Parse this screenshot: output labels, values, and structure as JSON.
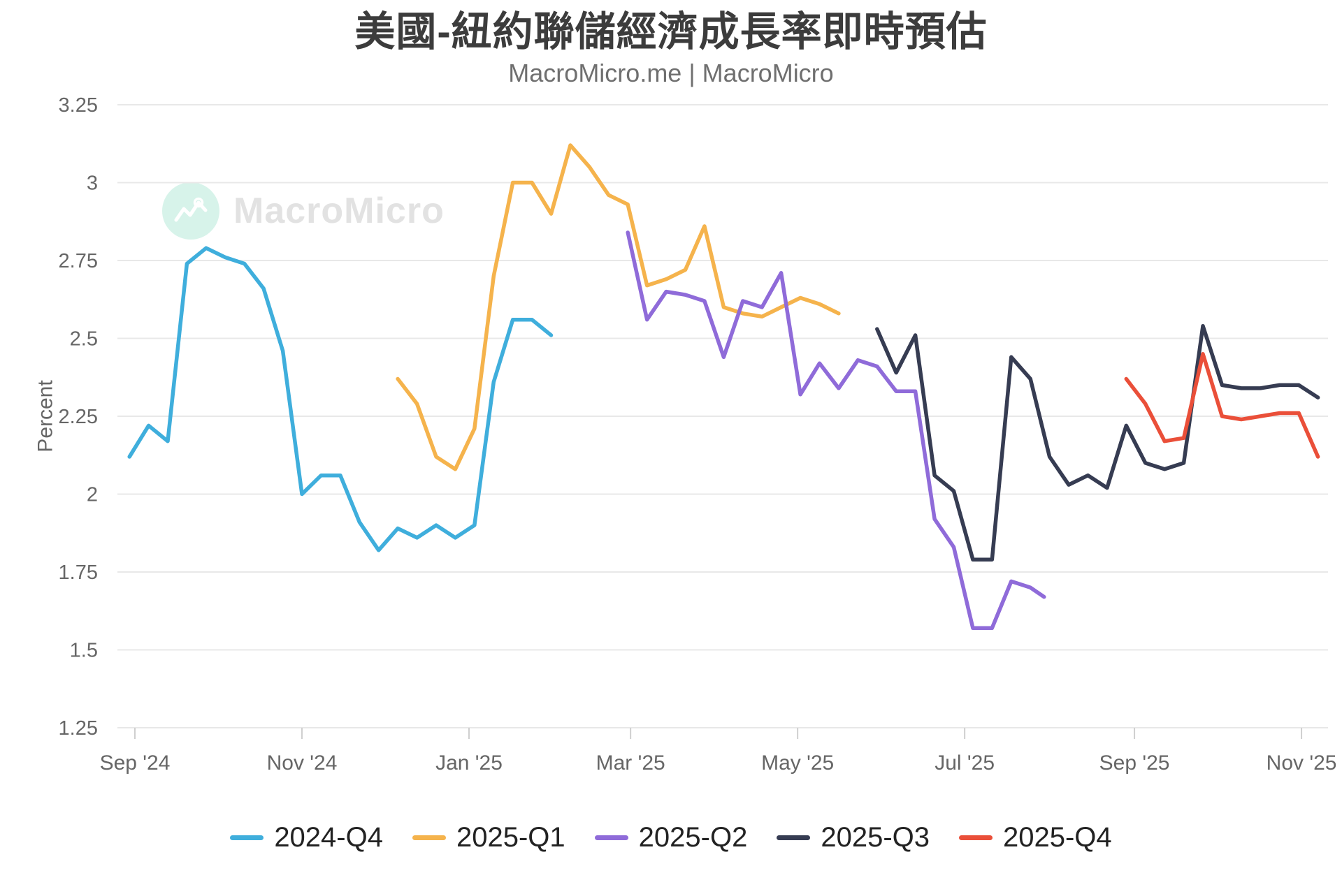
{
  "title": "美國-紐約聯儲經濟成長率即時預估",
  "subtitle": "MacroMicro.me | MacroMicro",
  "watermark": {
    "label": "MacroMicro"
  },
  "chart_data": {
    "type": "line",
    "title": "美國-紐約聯儲經濟成長率即時預估",
    "subtitle": "MacroMicro.me | MacroMicro",
    "ylabel": "Percent",
    "ylim": [
      1.25,
      3.25
    ],
    "y_ticks": [
      1.25,
      1.5,
      1.75,
      2,
      2.25,
      2.5,
      2.75,
      3,
      3.25
    ],
    "y_tick_labels": [
      "1.25",
      "1.5",
      "1.75",
      "2",
      "2.25",
      "2.5",
      "2.75",
      "3",
      "3.25"
    ],
    "x_ticks": [
      {
        "date": "2024-09-01",
        "label": "Sep '24"
      },
      {
        "date": "2024-11-01",
        "label": "Nov '24"
      },
      {
        "date": "2025-01-01",
        "label": "Jan '25"
      },
      {
        "date": "2025-03-01",
        "label": "Mar '25"
      },
      {
        "date": "2025-05-01",
        "label": "May '25"
      },
      {
        "date": "2025-07-01",
        "label": "Jul '25"
      },
      {
        "date": "2025-09-01",
        "label": "Sep '25"
      },
      {
        "date": "2025-11-01",
        "label": "Nov '25"
      }
    ],
    "grid": "horizontal",
    "legend_position": "bottom",
    "series": [
      {
        "name": "2024-Q4",
        "color": "#3FAEDC",
        "points": [
          [
            "2024-08-30",
            2.12
          ],
          [
            "2024-09-06",
            2.22
          ],
          [
            "2024-09-13",
            2.17
          ],
          [
            "2024-09-20",
            2.74
          ],
          [
            "2024-09-27",
            2.79
          ],
          [
            "2024-10-04",
            2.76
          ],
          [
            "2024-10-11",
            2.74
          ],
          [
            "2024-10-18",
            2.66
          ],
          [
            "2024-10-25",
            2.46
          ],
          [
            "2024-11-01",
            2.0
          ],
          [
            "2024-11-08",
            2.06
          ],
          [
            "2024-11-15",
            2.06
          ],
          [
            "2024-11-22",
            1.91
          ],
          [
            "2024-11-29",
            1.82
          ],
          [
            "2024-12-06",
            1.89
          ],
          [
            "2024-12-13",
            1.86
          ],
          [
            "2024-12-20",
            1.9
          ],
          [
            "2024-12-27",
            1.86
          ],
          [
            "2025-01-03",
            1.9
          ],
          [
            "2025-01-10",
            2.36
          ],
          [
            "2025-01-17",
            2.56
          ],
          [
            "2025-01-24",
            2.56
          ],
          [
            "2025-01-31",
            2.51
          ]
        ]
      },
      {
        "name": "2025-Q1",
        "color": "#F5B34C",
        "points": [
          [
            "2024-12-06",
            2.37
          ],
          [
            "2024-12-13",
            2.29
          ],
          [
            "2024-12-20",
            2.12
          ],
          [
            "2024-12-27",
            2.08
          ],
          [
            "2025-01-03",
            2.21
          ],
          [
            "2025-01-10",
            2.7
          ],
          [
            "2025-01-17",
            3.0
          ],
          [
            "2025-01-24",
            3.0
          ],
          [
            "2025-01-31",
            2.9
          ],
          [
            "2025-02-07",
            3.12
          ],
          [
            "2025-02-14",
            3.05
          ],
          [
            "2025-02-21",
            2.96
          ],
          [
            "2025-02-28",
            2.93
          ],
          [
            "2025-03-07",
            2.67
          ],
          [
            "2025-03-14",
            2.69
          ],
          [
            "2025-03-21",
            2.72
          ],
          [
            "2025-03-28",
            2.86
          ],
          [
            "2025-04-04",
            2.6
          ],
          [
            "2025-04-11",
            2.58
          ],
          [
            "2025-04-18",
            2.57
          ],
          [
            "2025-04-25",
            2.6
          ],
          [
            "2025-05-02",
            2.63
          ],
          [
            "2025-05-09",
            2.61
          ],
          [
            "2025-05-16",
            2.58
          ]
        ]
      },
      {
        "name": "2025-Q2",
        "color": "#8F6BD9",
        "points": [
          [
            "2025-02-28",
            2.84
          ],
          [
            "2025-03-07",
            2.56
          ],
          [
            "2025-03-14",
            2.65
          ],
          [
            "2025-03-21",
            2.64
          ],
          [
            "2025-03-28",
            2.62
          ],
          [
            "2025-04-04",
            2.44
          ],
          [
            "2025-04-11",
            2.62
          ],
          [
            "2025-04-18",
            2.6
          ],
          [
            "2025-04-25",
            2.71
          ],
          [
            "2025-05-02",
            2.32
          ],
          [
            "2025-05-09",
            2.42
          ],
          [
            "2025-05-16",
            2.34
          ],
          [
            "2025-05-23",
            2.43
          ],
          [
            "2025-05-30",
            2.41
          ],
          [
            "2025-06-06",
            2.33
          ],
          [
            "2025-06-13",
            2.33
          ],
          [
            "2025-06-20",
            1.92
          ],
          [
            "2025-06-27",
            1.83
          ],
          [
            "2025-07-04",
            1.57
          ],
          [
            "2025-07-11",
            1.57
          ],
          [
            "2025-07-18",
            1.72
          ],
          [
            "2025-07-25",
            1.7
          ],
          [
            "2025-07-30",
            1.67
          ]
        ]
      },
      {
        "name": "2025-Q3",
        "color": "#363C52",
        "points": [
          [
            "2025-05-30",
            2.53
          ],
          [
            "2025-06-06",
            2.39
          ],
          [
            "2025-06-13",
            2.51
          ],
          [
            "2025-06-20",
            2.06
          ],
          [
            "2025-06-27",
            2.01
          ],
          [
            "2025-07-04",
            1.79
          ],
          [
            "2025-07-11",
            1.79
          ],
          [
            "2025-07-18",
            2.44
          ],
          [
            "2025-07-25",
            2.37
          ],
          [
            "2025-08-01",
            2.12
          ],
          [
            "2025-08-08",
            2.03
          ],
          [
            "2025-08-15",
            2.06
          ],
          [
            "2025-08-22",
            2.02
          ],
          [
            "2025-08-29",
            2.22
          ],
          [
            "2025-09-05",
            2.1
          ],
          [
            "2025-09-12",
            2.08
          ],
          [
            "2025-09-19",
            2.1
          ],
          [
            "2025-09-26",
            2.54
          ],
          [
            "2025-10-03",
            2.35
          ],
          [
            "2025-10-10",
            2.34
          ],
          [
            "2025-10-17",
            2.34
          ],
          [
            "2025-10-24",
            2.35
          ],
          [
            "2025-10-31",
            2.35
          ],
          [
            "2025-11-07",
            2.31
          ]
        ]
      },
      {
        "name": "2025-Q4",
        "color": "#EA4F39",
        "points": [
          [
            "2025-08-29",
            2.37
          ],
          [
            "2025-09-05",
            2.29
          ],
          [
            "2025-09-12",
            2.17
          ],
          [
            "2025-09-19",
            2.18
          ],
          [
            "2025-09-26",
            2.45
          ],
          [
            "2025-10-03",
            2.25
          ],
          [
            "2025-10-10",
            2.24
          ],
          [
            "2025-10-17",
            2.25
          ],
          [
            "2025-10-24",
            2.26
          ],
          [
            "2025-10-31",
            2.26
          ],
          [
            "2025-11-07",
            2.12
          ]
        ]
      }
    ]
  },
  "style": {
    "grid_color": "#e8e8e8",
    "tick_color": "#cfcfcf",
    "axis_label_color": "#666666",
    "title_color": "#3c3c3c",
    "subtitle_color": "#6f6f6f",
    "legend_text_color": "#222222",
    "watermark_bubble_color": "#d7f3ea",
    "watermark_text_color": "#e2e2e2"
  }
}
